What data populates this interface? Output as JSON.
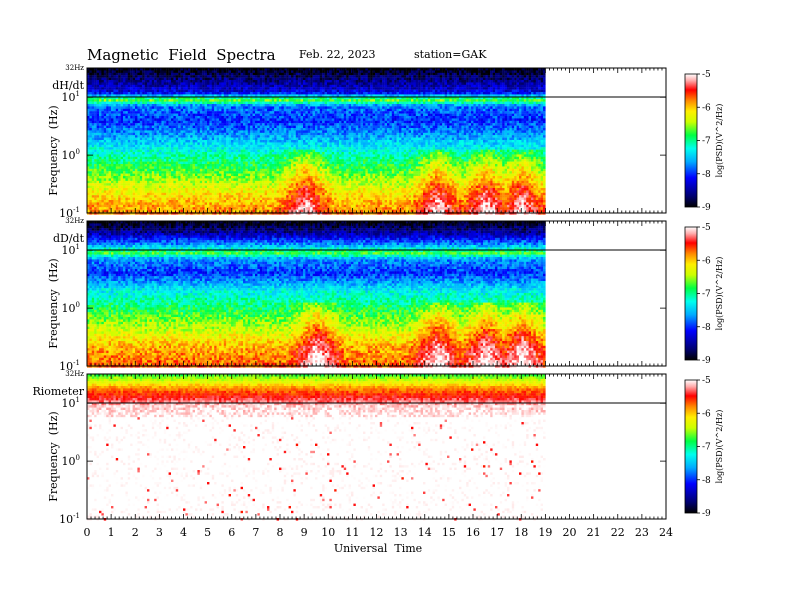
{
  "header": {
    "title": "Magnetic  Field  Spectra",
    "date": "Feb. 22, 2023",
    "station": "station=GAK"
  },
  "xaxis": {
    "label": "Universal  Time",
    "ticks": [
      "0",
      "1",
      "2",
      "3",
      "4",
      "5",
      "6",
      "7",
      "8",
      "9",
      "10",
      "11",
      "12",
      "13",
      "14",
      "15",
      "16",
      "17",
      "18",
      "19",
      "20",
      "21",
      "22",
      "23",
      "24"
    ],
    "range": [
      0,
      24
    ],
    "data_end_hour": 19
  },
  "yaxis": {
    "label": "Frequency  (Hz)",
    "top_label": "32Hz",
    "tick_bases": [
      "10",
      "10",
      "10"
    ],
    "tick_exps": [
      "1",
      "0",
      "-1"
    ],
    "tick_values": [
      10,
      1,
      0.1
    ],
    "scale": "log"
  },
  "colorbar": {
    "ticks": [
      "-5",
      "-6",
      "-7",
      "-8",
      "-9"
    ],
    "range": [
      -9,
      -5
    ],
    "label": "log(PSD)(V^2/Hz)"
  },
  "panels": [
    {
      "id": "dHdt",
      "label": "dH/dt"
    },
    {
      "id": "dDdt",
      "label": "dD/dt"
    },
    {
      "id": "riometer",
      "label": "Riometer"
    }
  ],
  "chart_data": [
    {
      "type": "heatmap",
      "title": "dH/dt",
      "x": [
        0,
        19
      ],
      "xlim": [
        0,
        24
      ],
      "y_scale": "log",
      "ylim": [
        0.1,
        32
      ],
      "colorscale_range": [
        -9,
        -5
      ],
      "x_band_hours": [
        0,
        1,
        2,
        3,
        4,
        5,
        6,
        7,
        8,
        9,
        10,
        11,
        12,
        13,
        14,
        15,
        16,
        17,
        18,
        19
      ],
      "freq_profile": [
        {
          "freq": 32,
          "log_psd": -9.0
        },
        {
          "freq": 20,
          "log_psd": -8.6
        },
        {
          "freq": 12,
          "log_psd": -8.2
        },
        {
          "freq": 9,
          "log_psd": -6.6
        },
        {
          "freq": 7,
          "log_psd": -7.8
        },
        {
          "freq": 4,
          "log_psd": -8.0
        },
        {
          "freq": 2,
          "log_psd": -7.6
        },
        {
          "freq": 1,
          "log_psd": -7.1
        },
        {
          "freq": 0.5,
          "log_psd": -6.7
        },
        {
          "freq": 0.2,
          "log_psd": -6.1
        },
        {
          "freq": 0.1,
          "log_psd": -5.8
        }
      ],
      "low_freq_enhancement_hours": [
        {
          "hour": 9,
          "log_psd": -5.3
        },
        {
          "hour": 14.5,
          "log_psd": -5.2
        },
        {
          "hour": 16.5,
          "log_psd": -5.1
        },
        {
          "hour": 18,
          "log_psd": -5.3
        }
      ]
    },
    {
      "type": "heatmap",
      "title": "dD/dt",
      "x": [
        0,
        19
      ],
      "xlim": [
        0,
        24
      ],
      "y_scale": "log",
      "ylim": [
        0.1,
        32
      ],
      "colorscale_range": [
        -9,
        -5
      ],
      "freq_profile": [
        {
          "freq": 32,
          "log_psd": -9.0
        },
        {
          "freq": 20,
          "log_psd": -8.5
        },
        {
          "freq": 12,
          "log_psd": -7.6
        },
        {
          "freq": 9,
          "log_psd": -6.7
        },
        {
          "freq": 7,
          "log_psd": -7.7
        },
        {
          "freq": 4,
          "log_psd": -8.0
        },
        {
          "freq": 2,
          "log_psd": -7.3
        },
        {
          "freq": 1,
          "log_psd": -6.9
        },
        {
          "freq": 0.5,
          "log_psd": -6.5
        },
        {
          "freq": 0.2,
          "log_psd": -5.9
        },
        {
          "freq": 0.1,
          "log_psd": -5.7
        }
      ],
      "low_freq_enhancement_hours": [
        {
          "hour": 9.5,
          "log_psd": -5.2
        },
        {
          "hour": 14.5,
          "log_psd": -5.2
        },
        {
          "hour": 16.5,
          "log_psd": -5.1
        },
        {
          "hour": 18,
          "log_psd": -5.2
        }
      ]
    },
    {
      "type": "heatmap",
      "title": "Riometer",
      "x": [
        0,
        19
      ],
      "xlim": [
        0,
        24
      ],
      "y_scale": "log",
      "ylim": [
        0.1,
        32
      ],
      "colorscale_range": [
        -9,
        -5
      ],
      "freq_profile": [
        {
          "freq": 32,
          "log_psd": -6.8
        },
        {
          "freq": 25,
          "log_psd": -6.4
        },
        {
          "freq": 18,
          "log_psd": -5.8
        },
        {
          "freq": 12,
          "log_psd": -5.4
        },
        {
          "freq": 9,
          "log_psd": -5.1
        },
        {
          "freq": 5,
          "log_psd": -5.0
        },
        {
          "freq": 1,
          "log_psd": -5.0
        },
        {
          "freq": 0.1,
          "log_psd": -5.0
        }
      ]
    }
  ]
}
